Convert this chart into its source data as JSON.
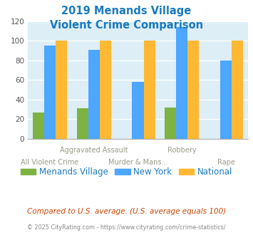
{
  "title_line1": "2019 Menands Village",
  "title_line2": "Violent Crime Comparison",
  "title_color": "#1a7abf",
  "series": {
    "Menands Village": [
      27,
      31,
      0,
      32,
      0
    ],
    "New York": [
      95,
      91,
      58,
      114,
      80
    ],
    "National": [
      100,
      100,
      100,
      100,
      100
    ]
  },
  "colors": {
    "Menands Village": "#7cb342",
    "New York": "#4da6ff",
    "National": "#ffb833"
  },
  "ylim": [
    0,
    120
  ],
  "yticks": [
    0,
    20,
    40,
    60,
    80,
    100,
    120
  ],
  "plot_bg": "#ddeef6",
  "legend_note": "Compared to U.S. average. (U.S. average equals 100)",
  "legend_note_color": "#cc4400",
  "footer": "© 2025 CityRating.com - https://www.cityrating.com/crime-statistics/",
  "footer_color": "#888888",
  "top_row_labels": {
    "1": "Aggravated Assault",
    "3": "Robbery"
  },
  "bottom_row_labels": {
    "0": "All Violent Crime",
    "2": "Murder & Mans...",
    "4": "Rape"
  },
  "bar_width": 0.26,
  "group_positions": [
    0,
    1,
    2,
    3,
    4
  ]
}
